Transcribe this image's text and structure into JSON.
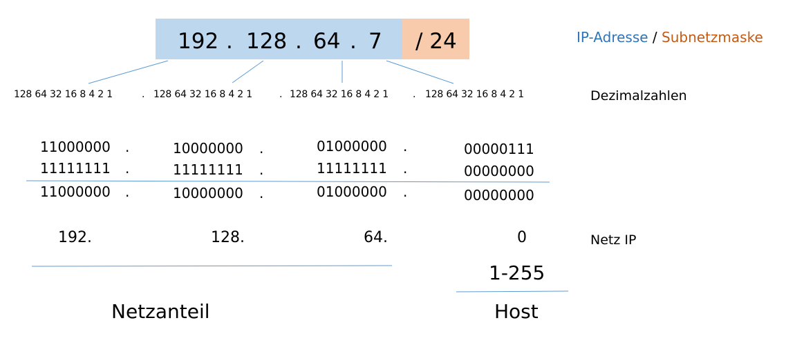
{
  "ip_address": {
    "octets": [
      "192",
      "128",
      "64",
      "7"
    ],
    "dots": [
      ".",
      ".",
      "."
    ],
    "prefix": "/ 24",
    "colors": {
      "ip_box": "#bdd7ee",
      "mask_box": "#f8cbad"
    }
  },
  "legend": {
    "ip_label": "IP-Adresse",
    "separator": "/",
    "mask_label": "Subnetzmaske",
    "ip_color": "#2e75b6",
    "mask_color": "#c55a11"
  },
  "weights": {
    "groups": [
      "128 64 32 16 8 4 2 1",
      "128 64 32 16 8 4 2 1",
      "128 64 32 16 8 4 2 1",
      "128 64 32 16 8 4 2 1"
    ],
    "dots": [
      ".",
      ".",
      "."
    ],
    "label": "Dezimalzahlen"
  },
  "binary": {
    "ip_row": [
      "11000000",
      "10000000",
      "01000000",
      "00000111"
    ],
    "mask_row": [
      "11111111",
      "11111111",
      "11111111",
      "00000000"
    ],
    "result_row": [
      "11000000",
      "10000000",
      "01000000",
      "00000000"
    ],
    "dot": "."
  },
  "network": {
    "octets": [
      "192.",
      "128.",
      "64.",
      "0"
    ],
    "label": "Netz IP"
  },
  "host_range": "1-255",
  "footer": {
    "net_part": "Netzanteil",
    "host_part": "Host"
  },
  "line_color": "#5b9bd5"
}
